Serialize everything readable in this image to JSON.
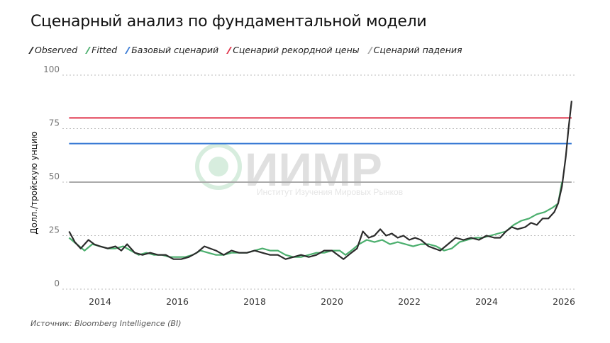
{
  "title": "Сценарный анализ по фундаментальной модели",
  "source": "Источник: Bloomberg Intelligence (BI)",
  "watermark": {
    "logo": "ИИМР",
    "subtitle": "Институт Изучения Мировых Рынков"
  },
  "chart_data": {
    "type": "line",
    "title": "Сценарный анализ по фундаментальной модели",
    "ylabel": "Долл./тройскую унцию",
    "xlabel": "",
    "ylim": [
      0,
      100
    ],
    "xlim": [
      2013,
      2026.4
    ],
    "yticks": [
      0,
      25,
      50,
      75,
      100
    ],
    "xticks": [
      2014,
      2016,
      2018,
      2020,
      2022,
      2024,
      2026
    ],
    "grid": "horizontal dotted",
    "legend_position": "top-left",
    "series": [
      {
        "name": "Observed",
        "color": "#2b2b2b",
        "x": [
          2013.2,
          2013.35,
          2013.5,
          2013.7,
          2013.85,
          2014.0,
          2014.2,
          2014.4,
          2014.55,
          2014.7,
          2014.9,
          2015.1,
          2015.3,
          2015.5,
          2015.7,
          2015.9,
          2016.1,
          2016.3,
          2016.5,
          2016.7,
          2016.85,
          2017.0,
          2017.2,
          2017.4,
          2017.6,
          2017.8,
          2018.0,
          2018.2,
          2018.4,
          2018.6,
          2018.8,
          2019.0,
          2019.2,
          2019.4,
          2019.6,
          2019.8,
          2020.0,
          2020.15,
          2020.3,
          2020.5,
          2020.65,
          2020.8,
          2020.95,
          2021.1,
          2021.25,
          2021.4,
          2021.55,
          2021.7,
          2021.85,
          2022.0,
          2022.15,
          2022.3,
          2022.5,
          2022.65,
          2022.8,
          2023.0,
          2023.2,
          2023.4,
          2023.6,
          2023.8,
          2024.0,
          2024.2,
          2024.35,
          2024.5,
          2024.65,
          2024.8,
          2025.0,
          2025.15,
          2025.3,
          2025.45,
          2025.6,
          2025.75,
          2025.85,
          2025.95,
          2026.05,
          2026.12,
          2026.2
        ],
        "values": [
          27,
          22,
          19,
          23,
          21,
          20,
          19,
          20,
          18,
          21,
          17,
          16,
          17,
          16,
          16,
          14,
          14,
          15,
          17,
          20,
          19,
          18,
          16,
          18,
          17,
          17,
          18,
          17,
          16,
          16,
          14,
          15,
          16,
          15,
          16,
          18,
          18,
          16,
          14,
          17,
          19,
          27,
          24,
          25,
          28,
          25,
          26,
          24,
          25,
          23,
          24,
          23,
          20,
          19,
          18,
          21,
          24,
          23,
          24,
          23,
          25,
          24,
          24,
          27,
          29,
          28,
          29,
          31,
          30,
          33,
          33,
          36,
          40,
          48,
          62,
          75,
          88
        ]
      },
      {
        "name": "Fitted",
        "color": "#4caf6e",
        "x": [
          2013.2,
          2013.4,
          2013.6,
          2013.8,
          2014.0,
          2014.2,
          2014.4,
          2014.6,
          2014.8,
          2015.0,
          2015.2,
          2015.4,
          2015.6,
          2015.8,
          2016.0,
          2016.2,
          2016.4,
          2016.6,
          2016.8,
          2017.0,
          2017.2,
          2017.4,
          2017.6,
          2017.8,
          2018.0,
          2018.2,
          2018.4,
          2018.6,
          2018.8,
          2019.0,
          2019.2,
          2019.4,
          2019.6,
          2019.8,
          2020.0,
          2020.2,
          2020.35,
          2020.5,
          2020.7,
          2020.9,
          2021.1,
          2021.3,
          2021.5,
          2021.7,
          2021.9,
          2022.1,
          2022.3,
          2022.5,
          2022.7,
          2022.9,
          2023.1,
          2023.3,
          2023.5,
          2023.7,
          2023.9,
          2024.1,
          2024.3,
          2024.5,
          2024.7,
          2024.9,
          2025.1,
          2025.3,
          2025.5,
          2025.7,
          2025.85,
          2025.95
        ],
        "values": [
          24,
          21,
          18,
          21,
          20,
          19,
          19,
          20,
          18,
          16,
          17,
          16,
          16,
          15,
          15,
          15,
          16,
          18,
          17,
          16,
          16,
          17,
          17,
          17,
          18,
          19,
          18,
          18,
          16,
          15,
          15,
          16,
          17,
          17,
          18,
          18,
          16,
          18,
          21,
          23,
          22,
          23,
          21,
          22,
          21,
          20,
          21,
          21,
          20,
          18,
          19,
          22,
          23,
          24,
          24,
          25,
          26,
          27,
          30,
          32,
          33,
          35,
          36,
          38,
          40,
          50
        ]
      },
      {
        "name": "Базовый сценарий",
        "color": "#3a7bd5",
        "x": [
          2013.2,
          2026.2
        ],
        "values": [
          68,
          68
        ]
      },
      {
        "name": "Сценарий рекордной цены",
        "color": "#e0334a",
        "x": [
          2013.2,
          2026.2
        ],
        "values": [
          80,
          80
        ]
      },
      {
        "name": "Сценарий падения",
        "color": "#aaaaaa",
        "x": [
          2013.2,
          2026.2
        ],
        "values": [
          50,
          50
        ]
      }
    ]
  }
}
